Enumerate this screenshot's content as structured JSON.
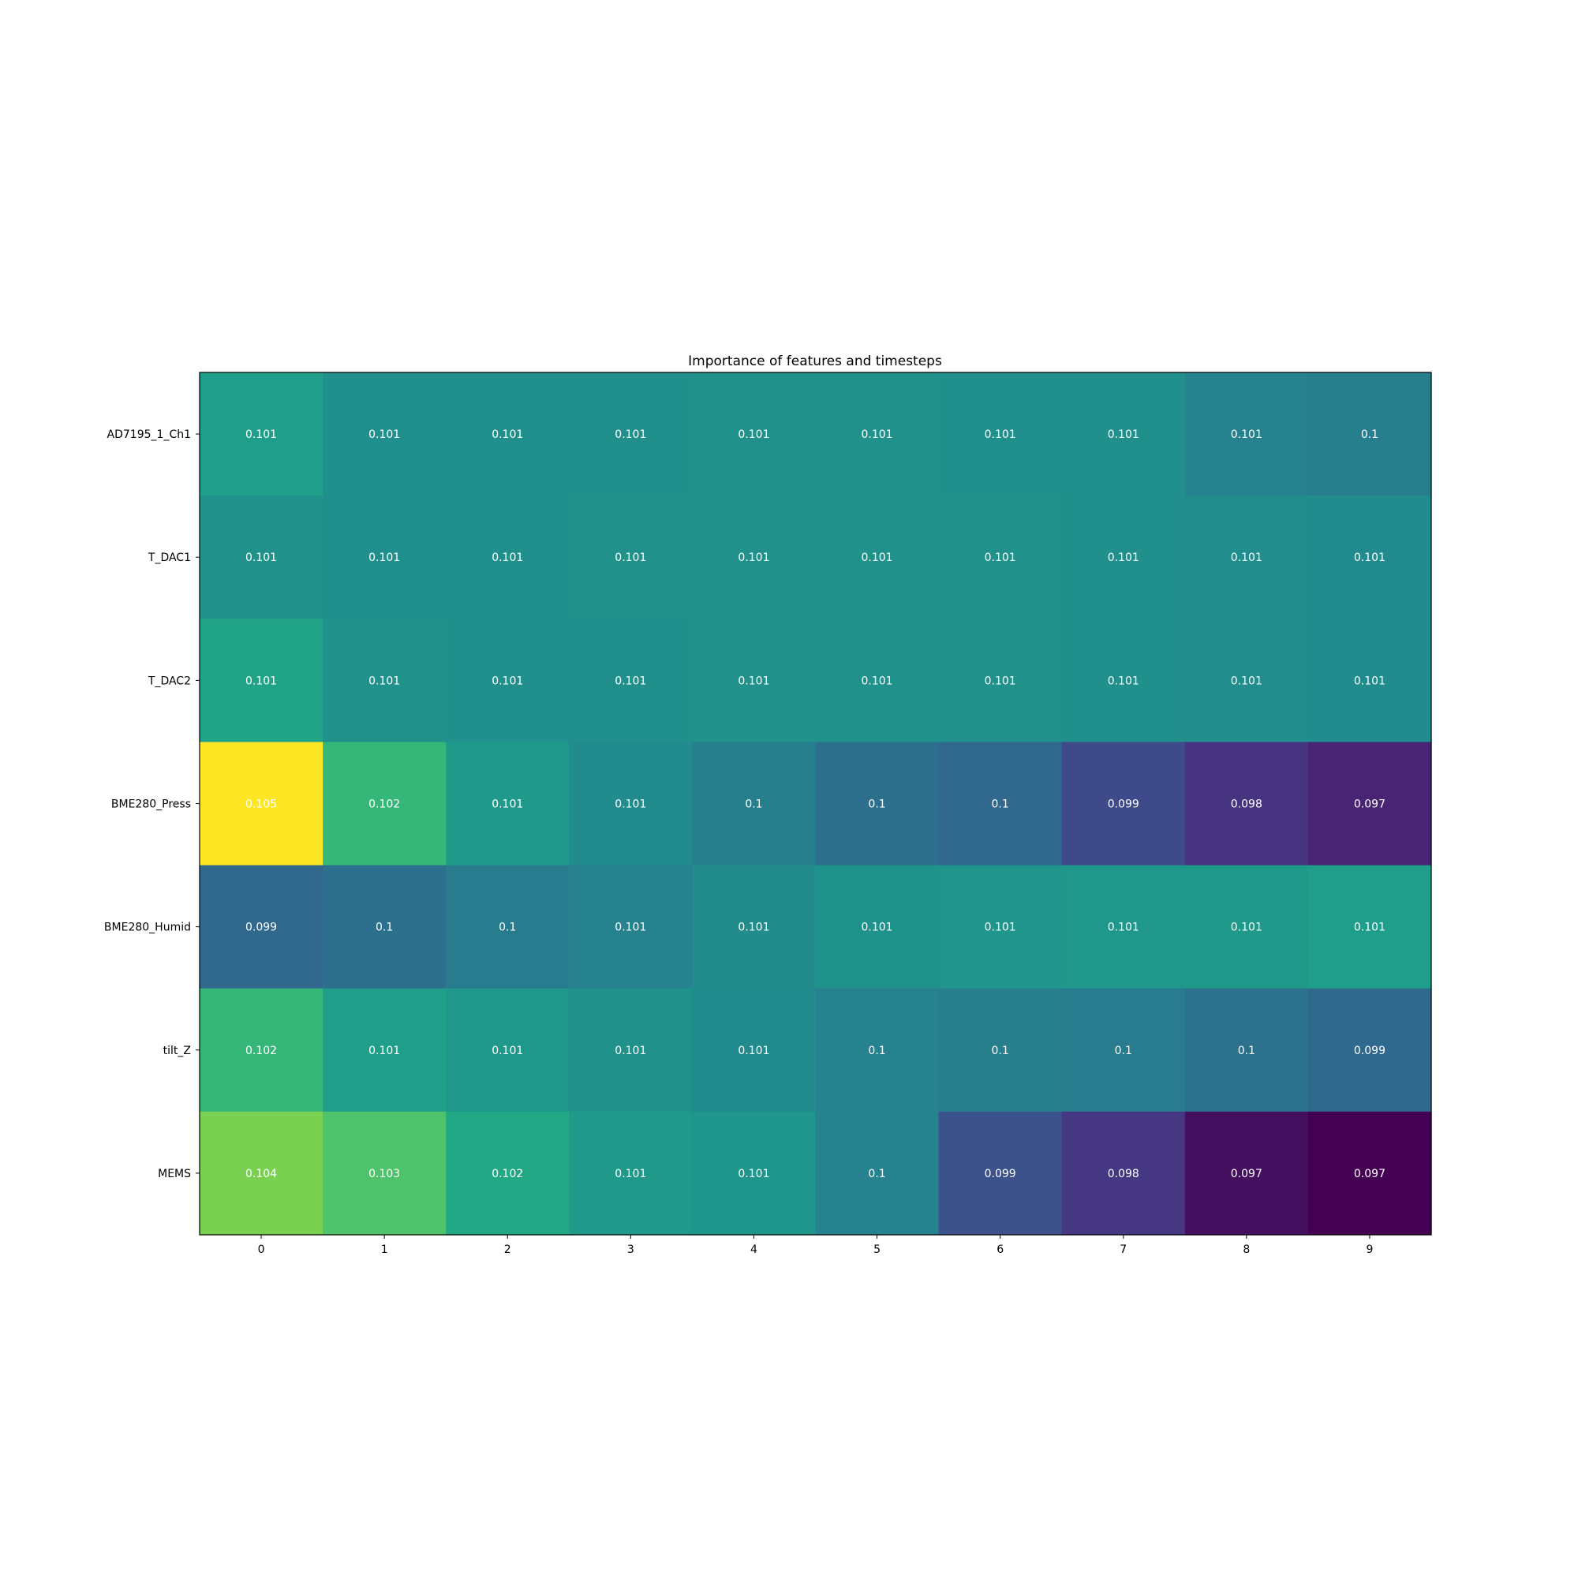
{
  "chart_data": {
    "type": "heatmap",
    "title": "Importance of features and timesteps",
    "xlabel": "",
    "ylabel": "",
    "x": [
      "0",
      "1",
      "2",
      "3",
      "4",
      "5",
      "6",
      "7",
      "8",
      "9"
    ],
    "y": [
      "AD7195_1_Ch1",
      "T_DAC1",
      "T_DAC2",
      "BME280_Press",
      "BME280_Humid",
      "tilt_Z",
      "MEMS"
    ],
    "values": [
      [
        0.101,
        0.101,
        0.101,
        0.101,
        0.101,
        0.101,
        0.101,
        0.101,
        0.101,
        0.1
      ],
      [
        0.101,
        0.101,
        0.101,
        0.101,
        0.101,
        0.101,
        0.101,
        0.101,
        0.101,
        0.101
      ],
      [
        0.101,
        0.101,
        0.101,
        0.101,
        0.101,
        0.101,
        0.101,
        0.101,
        0.101,
        0.101
      ],
      [
        0.105,
        0.102,
        0.101,
        0.101,
        0.1,
        0.1,
        0.1,
        0.099,
        0.098,
        0.097
      ],
      [
        0.099,
        0.1,
        0.1,
        0.101,
        0.101,
        0.101,
        0.101,
        0.101,
        0.101,
        0.101
      ],
      [
        0.102,
        0.101,
        0.101,
        0.101,
        0.101,
        0.1,
        0.1,
        0.1,
        0.1,
        0.099
      ],
      [
        0.104,
        0.103,
        0.102,
        0.101,
        0.101,
        0.1,
        0.099,
        0.098,
        0.097,
        0.097
      ]
    ],
    "color_scale": "viridis",
    "cell_colors": [
      [
        "#1f9e89",
        "#21908d",
        "#21908d",
        "#21908d",
        "#21918c",
        "#21918c",
        "#21908d",
        "#21908d",
        "#26828e",
        "#277f8e"
      ],
      [
        "#21918c",
        "#21908d",
        "#21908d",
        "#21918c",
        "#21918c",
        "#21918c",
        "#21918c",
        "#21908d",
        "#228d8d",
        "#228b8d"
      ],
      [
        "#20a386",
        "#21918c",
        "#21908d",
        "#21908d",
        "#21918c",
        "#21918c",
        "#21918c",
        "#21908d",
        "#228d8d",
        "#228b8d"
      ],
      [
        "#fde725",
        "#35b779",
        "#1f9a8a",
        "#228b8d",
        "#277f8e",
        "#2d708e",
        "#31688e",
        "#3e4a89",
        "#463480",
        "#482475"
      ],
      [
        "#31688e",
        "#2d708e",
        "#287c8e",
        "#26828e",
        "#228c8d",
        "#20928c",
        "#1f958b",
        "#1f988b",
        "#1f9a8a",
        "#1f9e89"
      ],
      [
        "#35b779",
        "#1f9e89",
        "#1f988b",
        "#21918c",
        "#228b8d",
        "#26828e",
        "#277f8e",
        "#287c8e",
        "#2c728e",
        "#30698e"
      ],
      [
        "#7ad151",
        "#4ec36b",
        "#22a884",
        "#1f9a8a",
        "#1f968b",
        "#26828e",
        "#3b528b",
        "#453781",
        "#440f5f",
        "#440154"
      ]
    ]
  }
}
